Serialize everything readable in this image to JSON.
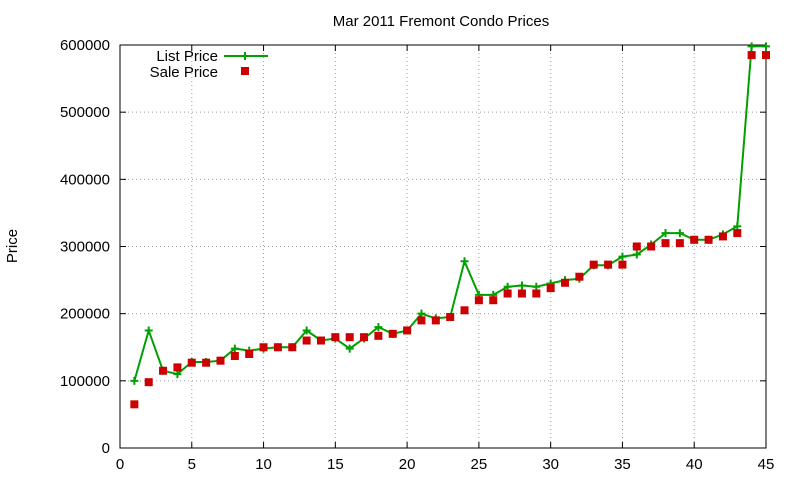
{
  "chart_data": {
    "type": "line",
    "title": "Mar 2011 Fremont Condo Prices",
    "xlabel": "",
    "ylabel": "Price",
    "xlim": [
      0,
      45
    ],
    "ylim": [
      0,
      600000
    ],
    "xticks": [
      0,
      5,
      10,
      15,
      20,
      25,
      30,
      35,
      40,
      45
    ],
    "yticks": [
      0,
      100000,
      200000,
      300000,
      400000,
      500000,
      600000
    ],
    "grid": true,
    "legend_position": "top-left",
    "series": [
      {
        "name": "List Price",
        "style": "line-with-plus-markers",
        "color": "#00a000",
        "x": [
          1,
          2,
          3,
          4,
          5,
          6,
          7,
          8,
          9,
          10,
          11,
          12,
          13,
          14,
          15,
          16,
          17,
          18,
          19,
          20,
          21,
          22,
          23,
          24,
          25,
          26,
          27,
          28,
          29,
          30,
          31,
          32,
          33,
          34,
          35,
          36,
          37,
          38,
          39,
          40,
          41,
          42,
          43,
          44,
          45
        ],
        "y": [
          100000,
          175000,
          115000,
          110000,
          128000,
          128000,
          130000,
          148000,
          145000,
          148000,
          150000,
          150000,
          175000,
          160000,
          163000,
          148000,
          163000,
          180000,
          170000,
          175000,
          200000,
          193000,
          195000,
          278000,
          228000,
          228000,
          240000,
          242000,
          240000,
          245000,
          250000,
          252000,
          272000,
          272000,
          285000,
          288000,
          303000,
          320000,
          320000,
          310000,
          310000,
          318000,
          330000,
          598000,
          598000
        ]
      },
      {
        "name": "Sale Price",
        "style": "square-markers",
        "color": "#cc0000",
        "x": [
          1,
          2,
          3,
          4,
          5,
          6,
          7,
          8,
          9,
          10,
          11,
          12,
          13,
          14,
          15,
          16,
          17,
          18,
          19,
          20,
          21,
          22,
          23,
          24,
          25,
          26,
          27,
          28,
          29,
          30,
          31,
          32,
          33,
          34,
          35,
          36,
          37,
          38,
          39,
          40,
          41,
          42,
          43,
          44,
          45
        ],
        "y": [
          65000,
          98000,
          115000,
          120000,
          127000,
          127000,
          130000,
          137000,
          140000,
          150000,
          150000,
          150000,
          160000,
          160000,
          165000,
          165000,
          165000,
          167000,
          170000,
          175000,
          190000,
          190000,
          195000,
          205000,
          220000,
          220000,
          230000,
          230000,
          230000,
          238000,
          246000,
          255000,
          273000,
          273000,
          273000,
          300000,
          300000,
          305000,
          305000,
          310000,
          310000,
          315000,
          320000,
          585000,
          585000
        ]
      }
    ]
  }
}
